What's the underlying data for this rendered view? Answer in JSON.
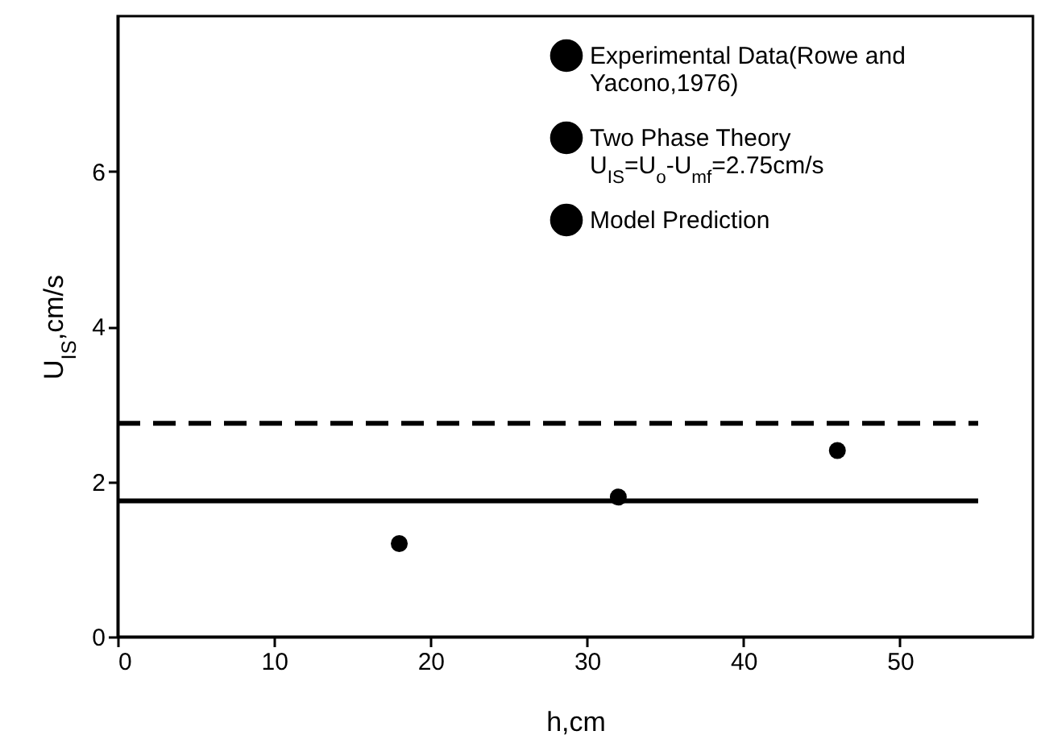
{
  "chart_data": {
    "type": "line",
    "xlabel": "h,cm",
    "ylabel": "U$_{IS}$,cm/s",
    "xlim": [
      0,
      58.5
    ],
    "ylim": [
      0,
      8
    ],
    "xticks": [
      0,
      10,
      20,
      30,
      40,
      50
    ],
    "yticks": [
      0,
      2,
      4,
      6
    ],
    "grid": false,
    "legend": "top right",
    "series": [
      {
        "name": "Experimental Data(Rowe and Yacono,1976)",
        "type": "scatter",
        "marker": "circle",
        "color": "#000000",
        "x": [
          18,
          32,
          46
        ],
        "values": [
          1.2,
          1.8,
          2.4
        ]
      },
      {
        "name": "Two Phase Theory U$_{IS}$=U$_{o}$-U$_{mf}$=2.75cm/s",
        "line_style": "dashed",
        "color": "#000000",
        "x": [
          0,
          55
        ],
        "values": [
          2.75,
          2.75
        ]
      },
      {
        "name": "Model Prediction",
        "line_style": "solid",
        "color": "#000000",
        "x": [
          0,
          55
        ],
        "values": [
          1.75,
          1.75
        ]
      }
    ]
  }
}
